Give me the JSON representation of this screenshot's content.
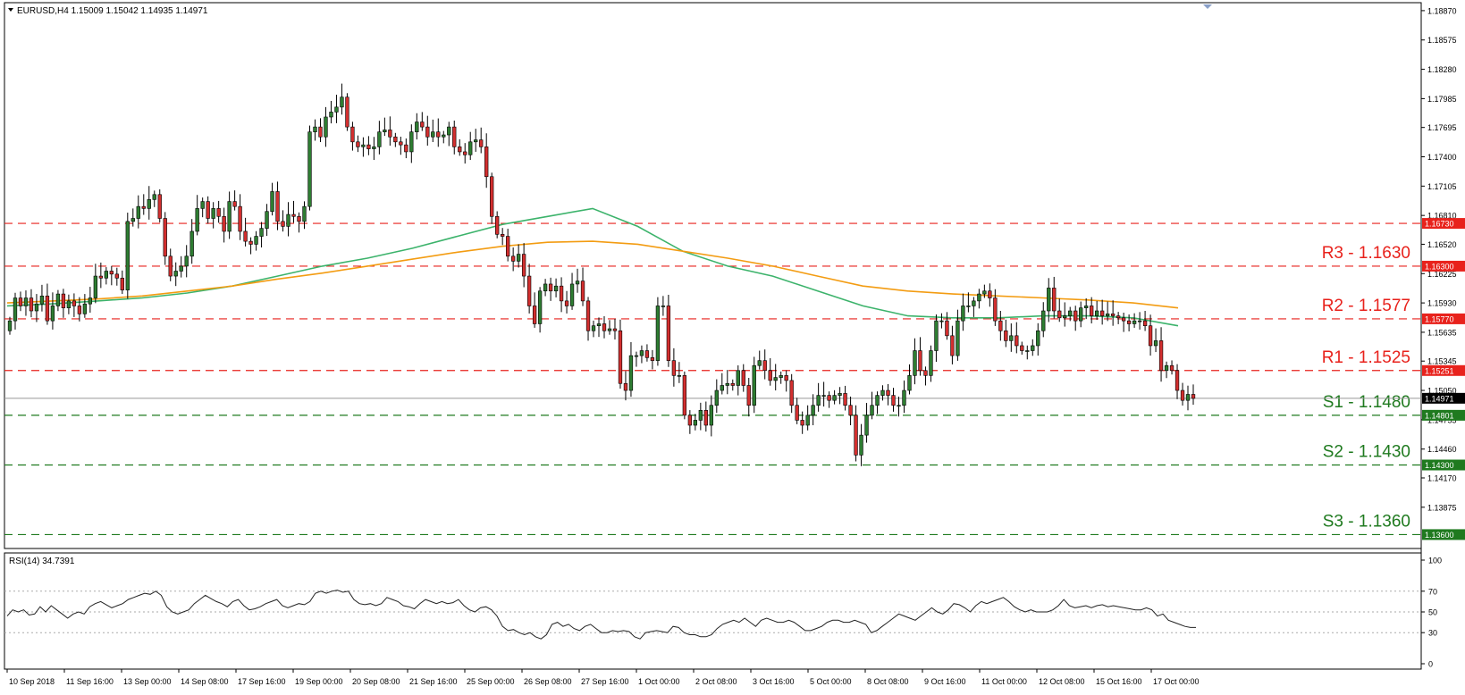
{
  "header": {
    "symbol_line": "EURUSD,H4  1.15009 1.15042 1.14935 1.14971"
  },
  "rsi_panel": {
    "label": "RSI(14) 34.7391"
  },
  "colors": {
    "bull": "#2e7d32",
    "bear": "#d32f2f",
    "resistance": "#e8221c",
    "support": "#1f7a1f",
    "ma_fast": "#3cb36b",
    "ma_slow": "#f39c12",
    "current_price": "#000000"
  },
  "chart_data": [
    {
      "type": "candlestick",
      "title": "EURUSD,H4",
      "ylim": [
        1.1346,
        1.1895
      ],
      "y_ticks": [
        "1.18870",
        "1.18575",
        "1.18280",
        "1.17985",
        "1.17695",
        "1.17400",
        "1.17105",
        "1.16810",
        "1.16520",
        "1.16225",
        "1.15930",
        "1.15635",
        "1.15345",
        "1.15050",
        "1.14755",
        "1.14460",
        "1.14170",
        "1.13875"
      ],
      "x_labels": [
        "10 Sep 2018",
        "11 Sep 16:00",
        "13 Sep 00:00",
        "14 Sep 08:00",
        "17 Sep 16:00",
        "19 Sep 00:00",
        "20 Sep 08:00",
        "21 Sep 16:00",
        "25 Sep 00:00",
        "26 Sep 08:00",
        "27 Sep 16:00",
        "1 Oct 00:00",
        "2 Oct 08:00",
        "3 Oct 16:00",
        "5 Oct 00:00",
        "8 Oct 08:00",
        "9 Oct 16:00",
        "11 Oct 00:00",
        "12 Oct 08:00",
        "15 Oct 16:00",
        "17 Oct 00:00"
      ],
      "candles_close": [
        1.1575,
        1.1598,
        1.159,
        1.1598,
        1.1585,
        1.1592,
        1.16,
        1.1575,
        1.159,
        1.1602,
        1.1588,
        1.1595,
        1.159,
        1.1582,
        1.1592,
        1.1598,
        1.162,
        1.1618,
        1.1625,
        1.1622,
        1.1618,
        1.1606,
        1.1675,
        1.1678,
        1.169,
        1.1688,
        1.1697,
        1.1702,
        1.1678,
        1.164,
        1.162,
        1.1625,
        1.163,
        1.164,
        1.1665,
        1.1688,
        1.1695,
        1.1678,
        1.1688,
        1.168,
        1.1665,
        1.1695,
        1.169,
        1.1665,
        1.1655,
        1.1652,
        1.166,
        1.1668,
        1.1685,
        1.1705,
        1.1675,
        1.167,
        1.1682,
        1.168,
        1.1675,
        1.169,
        1.1765,
        1.177,
        1.176,
        1.178,
        1.1785,
        1.179,
        1.18,
        1.177,
        1.1755,
        1.175,
        1.1752,
        1.1748,
        1.175,
        1.1765,
        1.1767,
        1.176,
        1.1755,
        1.1752,
        1.1745,
        1.1765,
        1.1775,
        1.177,
        1.176,
        1.1765,
        1.176,
        1.1762,
        1.177,
        1.175,
        1.1745,
        1.1742,
        1.1755,
        1.1757,
        1.175,
        1.172,
        1.168,
        1.1662,
        1.166,
        1.164,
        1.1635,
        1.1642,
        1.162,
        1.159,
        1.1572,
        1.1605,
        1.1612,
        1.1605,
        1.161,
        1.1595,
        1.159,
        1.1612,
        1.1615,
        1.1595,
        1.1565,
        1.157,
        1.1572,
        1.1565,
        1.1567,
        1.1565,
        1.1512,
        1.1505,
        1.154,
        1.154,
        1.1545,
        1.1538,
        1.1535,
        1.159,
        1.159,
        1.1535,
        1.152,
        1.152,
        1.148,
        1.147,
        1.1475,
        1.1485,
        1.147,
        1.149,
        1.1505,
        1.151,
        1.1512,
        1.151,
        1.1525,
        1.151,
        1.149,
        1.153,
        1.1535,
        1.1525,
        1.1515,
        1.1518,
        1.152,
        1.1515,
        1.149,
        1.1475,
        1.147,
        1.148,
        1.149,
        1.15,
        1.15,
        1.1495,
        1.15,
        1.1502,
        1.149,
        1.148,
        1.144,
        1.146,
        1.148,
        1.149,
        1.15,
        1.1505,
        1.15,
        1.149,
        1.149,
        1.1505,
        1.152,
        1.1545,
        1.1525,
        1.152,
        1.1545,
        1.1575,
        1.1575,
        1.156,
        1.154,
        1.1575,
        1.159,
        1.159,
        1.1595,
        1.1602,
        1.1605,
        1.1598,
        1.1575,
        1.1565,
        1.1555,
        1.156,
        1.155,
        1.1545,
        1.1545,
        1.155,
        1.1565,
        1.1585,
        1.1608,
        1.1585,
        1.1578,
        1.158,
        1.1585,
        1.1575,
        1.1588,
        1.159,
        1.158,
        1.1585,
        1.158,
        1.1582,
        1.158,
        1.1578,
        1.1575,
        1.1572,
        1.1575,
        1.1575,
        1.157,
        1.155,
        1.1555,
        1.1525,
        1.153,
        1.1525,
        1.1505,
        1.1495,
        1.1501,
        1.1497
      ],
      "series": [
        {
          "name": "MA fast",
          "values": [
            1.159,
            1.1592,
            1.1595,
            1.1598,
            1.1603,
            1.161,
            1.162,
            1.163,
            1.1638,
            1.1648,
            1.166,
            1.1672,
            1.168,
            1.1688,
            1.167,
            1.1645,
            1.163,
            1.162,
            1.1605,
            1.159,
            1.158,
            1.1578,
            1.1578,
            1.158,
            1.158,
            1.1578,
            1.157
          ]
        },
        {
          "name": "MA slow",
          "values": [
            1.1593,
            1.1595,
            1.1597,
            1.16,
            1.1605,
            1.161,
            1.1617,
            1.1623,
            1.163,
            1.1637,
            1.1644,
            1.165,
            1.1654,
            1.1655,
            1.1652,
            1.1645,
            1.1638,
            1.163,
            1.162,
            1.161,
            1.1605,
            1.1602,
            1.16,
            1.1598,
            1.1596,
            1.1593,
            1.1588
          ]
        }
      ],
      "levels": [
        {
          "value": 1.1673,
          "tag": "1.16730",
          "text": "",
          "kind": "resistance"
        },
        {
          "value": 1.163,
          "tag": "1.16300",
          "text": "R3 - 1.1630",
          "kind": "resistance"
        },
        {
          "value": 1.1577,
          "tag": "1.15770",
          "text": "R2 - 1.1577",
          "kind": "resistance"
        },
        {
          "value": 1.1525,
          "tag": "1.15251",
          "text": "R1 - 1.1525",
          "kind": "resistance"
        },
        {
          "value": 1.148,
          "tag": "1.14801",
          "text": "S1 - 1.1480",
          "kind": "support"
        },
        {
          "value": 1.143,
          "tag": "1.14300",
          "text": "S2 - 1.1430",
          "kind": "support"
        },
        {
          "value": 1.136,
          "tag": "1.13600",
          "text": "S3 - 1.1360",
          "kind": "support"
        }
      ],
      "current_price": {
        "value": 1.14971,
        "tag": "1.14971"
      }
    },
    {
      "type": "line",
      "title": "RSI(14) 34.7391",
      "ylim": [
        0,
        100
      ],
      "y_ticks": [
        "100",
        "70",
        "50",
        "30",
        "0"
      ],
      "levels": [
        70,
        50,
        30
      ],
      "values": [
        46,
        52,
        50,
        52,
        47,
        48,
        55,
        50,
        56,
        52,
        48,
        44,
        48,
        50,
        48,
        55,
        58,
        60,
        57,
        54,
        56,
        58,
        62,
        64,
        66,
        68,
        67,
        70,
        66,
        55,
        50,
        48,
        50,
        52,
        58,
        62,
        66,
        63,
        60,
        58,
        55,
        60,
        62,
        56,
        52,
        53,
        55,
        58,
        60,
        62,
        56,
        54,
        56,
        58,
        57,
        60,
        68,
        70,
        68,
        70,
        71,
        69,
        70,
        62,
        58,
        57,
        58,
        56,
        58,
        64,
        62,
        60,
        56,
        55,
        53,
        58,
        62,
        60,
        58,
        60,
        58,
        59,
        62,
        56,
        52,
        50,
        54,
        55,
        52,
        46,
        36,
        32,
        33,
        30,
        28,
        30,
        26,
        24,
        28,
        38,
        40,
        36,
        38,
        34,
        32,
        36,
        38,
        34,
        30,
        30,
        32,
        31,
        32,
        31,
        26,
        24,
        30,
        31,
        32,
        31,
        30,
        36,
        35,
        30,
        28,
        28,
        26,
        26,
        28,
        34,
        38,
        40,
        42,
        40,
        44,
        40,
        36,
        42,
        44,
        42,
        40,
        40,
        42,
        40,
        36,
        32,
        32,
        34,
        36,
        40,
        42,
        42,
        40,
        40,
        42,
        40,
        38,
        30,
        32,
        36,
        40,
        44,
        48,
        46,
        44,
        42,
        46,
        50,
        54,
        50,
        48,
        52,
        58,
        57,
        54,
        50,
        56,
        60,
        58,
        60,
        62,
        64,
        60,
        55,
        52,
        50,
        52,
        50,
        50,
        50,
        52,
        56,
        62,
        56,
        54,
        55,
        56,
        54,
        56,
        57,
        55,
        56,
        55,
        54,
        53,
        52,
        52,
        54,
        52,
        46,
        48,
        42,
        40,
        38,
        36,
        35,
        35
      ]
    }
  ]
}
